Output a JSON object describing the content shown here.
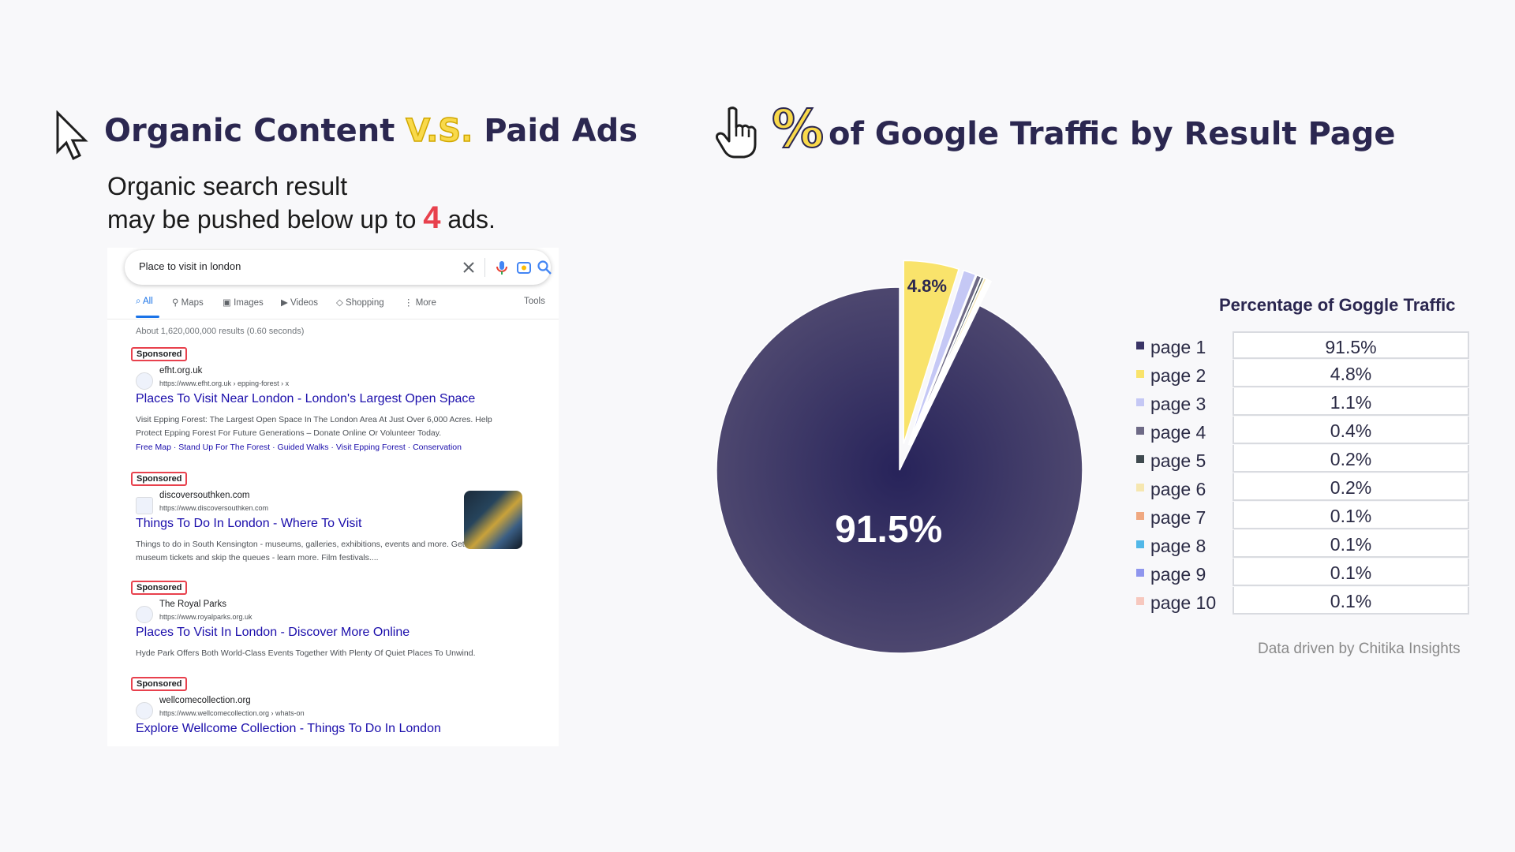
{
  "left": {
    "title_pre": "Organic Content ",
    "title_vs": "V.S.",
    "title_post": " Paid Ads",
    "subtitle_line1": "Organic search result",
    "subtitle_line2_pre": "may be pushed below up to ",
    "subtitle_highlight": "4",
    "subtitle_line2_post": " ads."
  },
  "search": {
    "query": "Place to visit in london",
    "tabs": [
      "All",
      "Maps",
      "Images",
      "Videos",
      "Shopping",
      "More"
    ],
    "tools_label": "Tools",
    "stats": "About 1,620,000,000 results (0.60 seconds)",
    "sponsored_label": "Sponsored",
    "ads": [
      {
        "site": "efht.org.uk",
        "url": "https://www.efht.org.uk › epping-forest › x",
        "title": "Places To Visit Near London - London's Largest Open Space",
        "desc": "Visit Epping Forest: The Largest Open Space In The London Area At Just Over 6,000 Acres. Help Protect Epping Forest For Future Generations – Donate Online Or Volunteer Today.",
        "links": "Free Map · Stand Up For The Forest · Guided Walks · Visit Epping Forest · Conservation"
      },
      {
        "site": "discoversouthken.com",
        "url": "https://www.discoversouthken.com",
        "title": "Things To Do In London - Where To Visit",
        "desc": "Things to do in South Kensington - museums, galleries, exhibitions, events and more. Get free museum tickets and skip the queues - learn more. Film festivals....",
        "links": ""
      },
      {
        "site": "The Royal Parks",
        "url": "https://www.royalparks.org.uk",
        "title": "Places To Visit In London - Discover More Online",
        "desc": "Hyde Park Offers Both World-Class Events Together With Plenty Of Quiet Places To Unwind.",
        "links": ""
      },
      {
        "site": "wellcomecollection.org",
        "url": "https://www.wellcomecollection.org › whats-on",
        "title": "Explore Wellcome Collection - Things To Do In London",
        "desc": "",
        "links": ""
      }
    ]
  },
  "right": {
    "title_pct": "%",
    "title": "of Google Traffic by Result Page",
    "table_title": "Percentage of Goggle Traffic",
    "source": "Data driven by Chitika Insights"
  },
  "chart_data": {
    "type": "pie",
    "categories": [
      "page 1",
      "page 2",
      "page 3",
      "page 4",
      "page 5",
      "page 6",
      "page 7",
      "page 8",
      "page 9",
      "page 10"
    ],
    "values": [
      91.5,
      4.8,
      1.1,
      0.4,
      0.2,
      0.2,
      0.1,
      0.1,
      0.1,
      0.1
    ],
    "labels": [
      "91.5%",
      "4.8%",
      "1.1%",
      "0.4%",
      "0.2%",
      "0.2%",
      "0.1%",
      "0.1%",
      "0.1%",
      "0.1%"
    ],
    "colors": [
      "#3a3466",
      "#f9e36b",
      "#c5c8f5",
      "#6e6a86",
      "#3f4a4f",
      "#f6e7b0",
      "#f0a880",
      "#52b8e8",
      "#8f96ee",
      "#f7c8be"
    ],
    "exploded": [
      false,
      true,
      true,
      true,
      true,
      true,
      true,
      true,
      true,
      true
    ],
    "slice_labels_shown": [
      "91.5%",
      "4.8%"
    ]
  }
}
